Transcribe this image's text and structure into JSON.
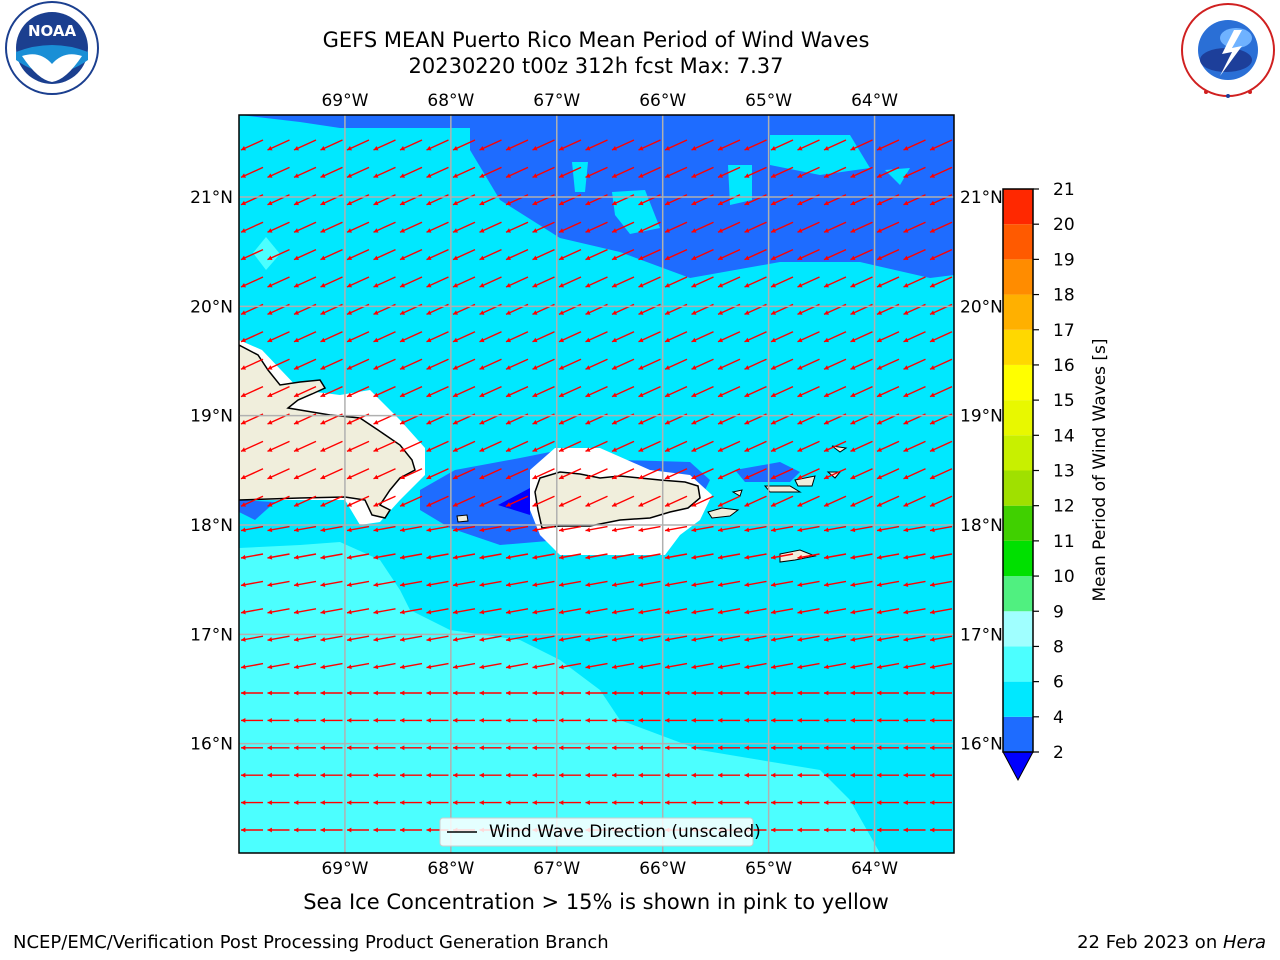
{
  "header": {
    "title_line1": "GEFS MEAN Puerto Rico Mean Period of Wind Waves",
    "title_line2": "20230220 t00z 312h fcst   Max: 7.37"
  },
  "logos": {
    "left": {
      "icon": "noaa-logo",
      "text": "NOAA",
      "ring_text": "NATIONAL OCEANIC AND ATMOSPHERIC ADMINISTRATION · U.S. DEPARTMENT OF COMMERCE"
    },
    "right": {
      "icon": "nws-logo",
      "ring_text": "NATIONAL WEATHER SERVICE"
    }
  },
  "note": "Sea Ice Concentration > 15% is shown in pink to yellow",
  "footer": {
    "left": "NCEP/EMC/Verification Post Processing Product Generation Branch",
    "right_prefix": "22 Feb 2023 on ",
    "right_machine": "Hera"
  },
  "chart_data": {
    "type": "heatmap",
    "title": "GEFS MEAN Puerto Rico Mean Period of Wind Waves",
    "subtitle": "20230220 t00z 312h fcst   Max: 7.37",
    "x_ticks": [
      "69°W",
      "68°W",
      "67°W",
      "66°W",
      "65°W",
      "64°W"
    ],
    "x_values": [
      -69,
      -68,
      -67,
      -66,
      -65,
      -64
    ],
    "y_ticks": [
      "21°N",
      "20°N",
      "19°N",
      "18°N",
      "17°N",
      "16°N"
    ],
    "y_values": [
      21,
      20,
      19,
      18,
      17,
      16
    ],
    "lon_range": [
      -70.0,
      -63.25
    ],
    "lat_range": [
      15.0,
      21.75
    ],
    "grid": true,
    "legend": {
      "label": "Wind Wave Direction (unscaled)",
      "placement": "bottom-center"
    },
    "vector_direction": "toward southwest (from northeast)",
    "colorbar": {
      "label": "Mean Period of Wind Waves [s]",
      "ticks": [
        "2",
        "4",
        "6",
        "8",
        "9",
        "10",
        "11",
        "12",
        "13",
        "14",
        "15",
        "16",
        "17",
        "18",
        "19",
        "20",
        "21"
      ],
      "levels": [
        2,
        4,
        6,
        8,
        9,
        10,
        11,
        12,
        13,
        14,
        15,
        16,
        17,
        18,
        19,
        20,
        21
      ],
      "colors": [
        "#1e6cff",
        "#00e8ff",
        "#4cffff",
        "#a0ffff",
        "#50f080",
        "#00e000",
        "#40d000",
        "#a0e000",
        "#c8f000",
        "#e8f800",
        "#ffff00",
        "#ffd800",
        "#ffb000",
        "#ff8c00",
        "#ff5a00",
        "#ff2800",
        "#ff0000"
      ],
      "under_color": "#0000ff",
      "extend": "min"
    },
    "max_value": 7.37
  }
}
